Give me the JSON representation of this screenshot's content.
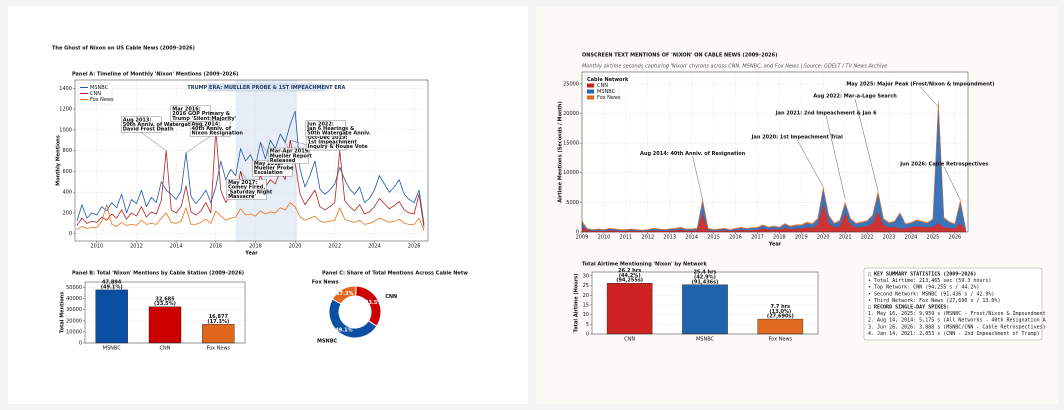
{
  "left_header": {
    "title": "The Ghost of Nixon on US Cable News (2009–2026)"
  },
  "right_header": {
    "title": "ONSCREEN TEXT MENTIONS OF 'NIXON' ON CABLE NEWS (2009–2026)",
    "subtitle": "Monthly airtime seconds capturing 'Nixon' chyrons across CNN, MSNBC, and Fox News | Source: GDELT / TV News Archive"
  },
  "chart_data": [
    {
      "type": "line",
      "title": "Panel A: Timeline of Monthly 'Nixon' Mentions (2009–2026)",
      "xlabel": "Year",
      "ylabel": "Monthly Mentions",
      "grid": true,
      "legend": "upper left",
      "xlim": [
        2008.9,
        2026.7
      ],
      "xticks": [
        2010,
        2012,
        2014,
        2016,
        2018,
        2020,
        2022,
        2024,
        2026
      ],
      "ylim": [
        -70,
        1480
      ],
      "yticks": [
        0,
        200,
        400,
        600,
        800,
        1000,
        1200,
        1400
      ],
      "span": [
        2017.0,
        2020.1
      ],
      "span_label": "TRUMP ERA: MUELLER PROBE & 1ST IMPEACHMENT ERA",
      "x": [
        2009,
        2009.25,
        2009.5,
        2009.75,
        2010,
        2010.25,
        2010.5,
        2010.75,
        2011,
        2011.25,
        2011.5,
        2011.75,
        2012,
        2012.25,
        2012.5,
        2012.75,
        2013,
        2013.25,
        2013.5,
        2013.75,
        2014,
        2014.25,
        2014.5,
        2014.75,
        2015,
        2015.25,
        2015.5,
        2015.75,
        2016,
        2016.25,
        2016.5,
        2016.75,
        2017,
        2017.25,
        2017.5,
        2017.75,
        2018,
        2018.25,
        2018.5,
        2018.75,
        2019,
        2019.25,
        2019.5,
        2019.75,
        2020,
        2020.25,
        2020.5,
        2020.75,
        2021,
        2021.25,
        2021.5,
        2021.75,
        2022,
        2022.25,
        2022.5,
        2022.75,
        2023,
        2023.25,
        2023.5,
        2023.75,
        2024,
        2024.25,
        2024.5,
        2024.75,
        2025,
        2025.25,
        2025.5,
        2025.75,
        2026,
        2026.25,
        2026.5
      ],
      "series": [
        {
          "name": "MSNBC",
          "color": "#1f5aa6",
          "values": [
            120,
            280,
            150,
            200,
            180,
            260,
            220,
            300,
            250,
            380,
            200,
            330,
            290,
            420,
            260,
            350,
            300,
            500,
            420,
            380,
            330,
            410,
            780,
            360,
            290,
            350,
            420,
            300,
            450,
            700,
            520,
            620,
            560,
            820,
            700,
            760,
            650,
            880,
            720,
            900,
            820,
            960,
            880,
            1050,
            1180,
            620,
            450,
            560,
            700,
            430,
            380,
            420,
            480,
            640,
            520,
            430,
            380,
            450,
            300,
            340,
            420,
            560,
            480,
            400,
            450,
            520,
            380,
            330,
            300,
            420,
            90
          ]
        },
        {
          "name": "CNN",
          "color": "#b22222",
          "values": [
            80,
            150,
            100,
            120,
            110,
            160,
            130,
            190,
            150,
            230,
            140,
            200,
            170,
            260,
            160,
            210,
            190,
            320,
            800,
            230,
            200,
            260,
            460,
            210,
            180,
            220,
            300,
            200,
            1000,
            420,
            300,
            380,
            350,
            600,
            420,
            460,
            400,
            560,
            450,
            520,
            480,
            600,
            520,
            900,
            680,
            380,
            280,
            350,
            420,
            260,
            230,
            260,
            300,
            800,
            320,
            260,
            220,
            280,
            190,
            210,
            260,
            340,
            290,
            240,
            270,
            310,
            230,
            200,
            190,
            380,
            60
          ]
        },
        {
          "name": "Fox News",
          "color": "#e8731a",
          "values": [
            40,
            70,
            50,
            60,
            60,
            120,
            280,
            90,
            70,
            110,
            80,
            90,
            80,
            130,
            90,
            100,
            90,
            150,
            200,
            110,
            100,
            120,
            250,
            90,
            90,
            110,
            140,
            100,
            220,
            170,
            130,
            150,
            160,
            240,
            180,
            190,
            170,
            220,
            190,
            210,
            200,
            250,
            230,
            300,
            260,
            160,
            130,
            150,
            170,
            120,
            110,
            120,
            130,
            250,
            140,
            120,
            110,
            130,
            90,
            100,
            120,
            150,
            130,
            110,
            120,
            140,
            100,
            90,
            90,
            150,
            30
          ]
        }
      ],
      "annotations": [
        {
          "text": [
            "Aug 2013:",
            "50th Anniv. of Watergate &",
            "David Frost Death"
          ],
          "x": 2013.5,
          "y": 800
        },
        {
          "text": [
            "Aug 2014:",
            "40th Anniv. of",
            "Nixon Resignation"
          ],
          "x": 2014.5,
          "y": 780
        },
        {
          "text": [
            "Mar 2016:",
            "2016 GOP Primary &",
            "Trump 'Silent Majority'"
          ],
          "x": 2016.0,
          "y": 1000
        },
        {
          "text": [
            "May 2017:",
            "Comey Fired,",
            "'Saturday Night",
            "Massacre'"
          ],
          "x": 2017.25,
          "y": 600
        },
        {
          "text": [
            "May 2018:",
            "Mueller Probe",
            "Escalation"
          ],
          "x": 2018.25,
          "y": 880
        },
        {
          "text": [
            "Mar-Apr 2019:",
            "Mueller Report",
            "Released"
          ],
          "x": 2019.25,
          "y": 960
        },
        {
          "text": [
            "Oct-Dec 2019:",
            "1st Impeachment",
            "Inquiry & House Vote"
          ],
          "x": 2019.75,
          "y": 900
        },
        {
          "text": [
            "Jun 2022:",
            "Jan 6 Hearings &",
            "50th Watergate Anniv."
          ],
          "x": 2022.25,
          "y": 800
        }
      ]
    },
    {
      "type": "bar",
      "title": "Panel B: Total 'Nixon' Mentions by Cable Station (2009–2026)",
      "ylabel": "Total Mentions",
      "grid": true,
      "categories": [
        "MSNBC",
        "CNN",
        "Fox News"
      ],
      "values": [
        47894,
        32685,
        16877
      ],
      "value_labels": [
        "47,894",
        "32,685",
        "16,877"
      ],
      "share_labels": [
        "(49.1%)",
        "(33.5%)",
        "(17.3%)"
      ],
      "colors": [
        "#0b4fa3",
        "#cc0000",
        "#e0661c"
      ],
      "ylim": [
        0,
        55000
      ],
      "yticks": [
        0,
        10000,
        20000,
        30000,
        40000,
        50000
      ]
    },
    {
      "type": "pie",
      "title": "Panel C: Share of Total Mentions Across Cable Netw",
      "categories": [
        "MSNBC",
        "CNN",
        "Fox News"
      ],
      "values": [
        49.1,
        33.5,
        17.3
      ],
      "value_labels": [
        "49.1%",
        "33.5%",
        "17.3%"
      ],
      "colors": [
        "#0b4fa3",
        "#cc0000",
        "#e0661c"
      ]
    },
    {
      "type": "area",
      "xlabel": "Year",
      "ylabel": "Airtime Mentions (Seconds / Month)",
      "grid": true,
      "legend": "upper left",
      "legend_title": "Cable Network",
      "xlim": [
        2009,
        2026.6
      ],
      "xticks": [
        2009,
        2010,
        2011,
        2012,
        2013,
        2014,
        2015,
        2016,
        2017,
        2018,
        2019,
        2020,
        2021,
        2022,
        2023,
        2024,
        2025,
        2026
      ],
      "ylim": [
        0,
        27000
      ],
      "yticks": [
        0,
        5000,
        10000,
        15000,
        20000,
        25000
      ],
      "x": [
        2009,
        2009.25,
        2009.5,
        2009.75,
        2010,
        2010.25,
        2010.5,
        2010.75,
        2011,
        2011.25,
        2011.5,
        2011.75,
        2012,
        2012.25,
        2012.5,
        2012.75,
        2013,
        2013.25,
        2013.5,
        2013.75,
        2014,
        2014.25,
        2014.5,
        2014.75,
        2015,
        2015.25,
        2015.5,
        2015.75,
        2016,
        2016.25,
        2016.5,
        2016.75,
        2017,
        2017.25,
        2017.5,
        2017.75,
        2018,
        2018.25,
        2018.5,
        2018.75,
        2019,
        2019.25,
        2019.5,
        2019.75,
        2020,
        2020.25,
        2020.5,
        2020.75,
        2021,
        2021.25,
        2021.5,
        2021.75,
        2022,
        2022.25,
        2022.5,
        2022.75,
        2023,
        2023.25,
        2023.5,
        2023.75,
        2024,
        2024.25,
        2024.5,
        2024.75,
        2025,
        2025.25,
        2025.5,
        2025.75,
        2026,
        2026.25,
        2026.5
      ],
      "series": [
        {
          "name": "CNN",
          "color": "#c81e1e",
          "values": [
            900,
            300,
            200,
            250,
            200,
            300,
            250,
            200,
            200,
            250,
            200,
            150,
            200,
            300,
            250,
            200,
            250,
            300,
            400,
            250,
            250,
            300,
            3200,
            300,
            200,
            250,
            300,
            200,
            300,
            400,
            300,
            350,
            400,
            600,
            400,
            500,
            400,
            700,
            500,
            600,
            600,
            800,
            700,
            1200,
            4800,
            1500,
            800,
            1000,
            3200,
            1200,
            800,
            900,
            1000,
            1500,
            3500,
            1200,
            800,
            900,
            600,
            700,
            800,
            1000,
            900,
            800,
            900,
            1500,
            800,
            700,
            600,
            1500,
            300
          ]
        },
        {
          "name": "MSNBC",
          "color": "#2367b4",
          "values": [
            600,
            200,
            150,
            200,
            150,
            250,
            200,
            150,
            150,
            200,
            150,
            120,
            150,
            250,
            200,
            150,
            200,
            250,
            300,
            200,
            200,
            250,
            2000,
            250,
            150,
            200,
            250,
            150,
            250,
            300,
            250,
            300,
            300,
            500,
            350,
            400,
            350,
            600,
            400,
            500,
            500,
            700,
            600,
            900,
            2500,
            1200,
            600,
            800,
            1600,
            900,
            600,
            700,
            800,
            1200,
            3000,
            900,
            700,
            800,
            2500,
            600,
            700,
            900,
            800,
            700,
            1200,
            20000,
            1500,
            900,
            700,
            3500,
            200
          ]
        },
        {
          "name": "Fox News",
          "color": "#e8641b",
          "values": [
            400,
            100,
            80,
            90,
            80,
            100,
            90,
            80,
            80,
            90,
            80,
            70,
            80,
            100,
            90,
            80,
            90,
            100,
            120,
            90,
            90,
            100,
            300,
            100,
            80,
            90,
            100,
            80,
            100,
            120,
            100,
            110,
            120,
            150,
            120,
            130,
            120,
            160,
            130,
            150,
            150,
            180,
            160,
            250,
            300,
            200,
            150,
            160,
            250,
            150,
            130,
            140,
            150,
            200,
            400,
            180,
            130,
            150,
            200,
            120,
            130,
            160,
            150,
            130,
            150,
            600,
            200,
            150,
            120,
            400,
            50
          ]
        }
      ],
      "annotations": [
        {
          "text": [
            "Aug 2014: 40th Anniv. of Resignation"
          ],
          "x": 2014.5,
          "y": 5500
        },
        {
          "text": [
            "Jan 2020: 1st Impeachment Trial"
          ],
          "x": 2020.0,
          "y": 7600
        },
        {
          "text": [
            "Jan 2021: 2nd Impeachment & Jan 6"
          ],
          "x": 2021.0,
          "y": 5600
        },
        {
          "text": [
            "Aug 2022: Mar-a-Lago Search"
          ],
          "x": 2022.5,
          "y": 6900
        },
        {
          "text": [
            "May 2025: Major Peak (Frost/Nixon & Impoundment)"
          ],
          "x": 2025.25,
          "y": 21100
        },
        {
          "text": [
            "Jun 2026: Cable Retrospectives"
          ],
          "x": 2026.25,
          "y": 5400
        }
      ]
    },
    {
      "type": "bar",
      "title": "Total Airtime Mentioning 'Nixon' by Network",
      "ylabel": "Total Airtime (Hours)",
      "grid": true,
      "categories": [
        "CNN",
        "MSNBC",
        "Fox News"
      ],
      "values": [
        26.2,
        25.4,
        7.7
      ],
      "value_labels": [
        "26.2 hrs",
        "25.4 hrs",
        "7.7 hrs"
      ],
      "share_labels": [
        "(44.2%)",
        "(42.9%)",
        "(13.0%)"
      ],
      "seconds_labels": [
        "(94,255s)",
        "(91,436s)",
        "(27,690s)"
      ],
      "colors": [
        "#cc2222",
        "#2062ac",
        "#e06a1f"
      ],
      "ylim": [
        0,
        32
      ],
      "yticks": [
        0,
        5,
        10,
        15,
        20,
        25,
        30
      ]
    }
  ],
  "stats": {
    "lines": [
      "□ KEY SUMMARY STATISTICS (2009–2026)",
      "• Total Airtime:   213,465 sec (59.3 hours)",
      "• Top Network:     CNN (94,255 s / 44.2%)",
      "• Second Network:  MSNBC (91,436 s / 42.9%)",
      "• Third Network:   Fox News (27,690 s / 13.0%)",
      "□ RECORD SINGLE-DAY SPIKES:",
      "1. May 16, 2025:  9,959 s (MSNBC - Frost/Nixon & Impoundment",
      "2. Aug 14, 2014:  5,175 s (All Networks - 40th Resignation A",
      "3. Jun 26, 2026:  3,888 s (MSNBC/CNN - Cable Retrospectives)",
      "4. Jan 14, 2021:  2,053 s (CNN - 2nd Impeachment of Trump)"
    ]
  }
}
